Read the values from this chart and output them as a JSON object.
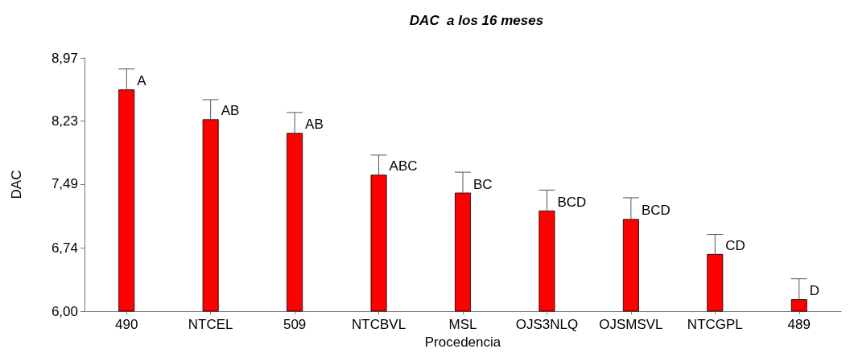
{
  "chart_data": {
    "type": "bar",
    "title": "DAC  a los 16 meses",
    "xlabel": "Procedencia",
    "ylabel": "DAC",
    "categories": [
      "490",
      "NTCEL",
      "509",
      "NTCBVL",
      "MSL",
      "OJS3NLQ",
      "OJSMSVL",
      "NTCGPL",
      "489"
    ],
    "values": [
      8.6,
      8.25,
      8.09,
      7.6,
      7.39,
      7.18,
      7.08,
      6.67,
      6.14
    ],
    "errors": [
      [
        8.6,
        8.84
      ],
      [
        8.25,
        8.48
      ],
      [
        8.09,
        8.33
      ],
      [
        7.6,
        7.83
      ],
      [
        7.39,
        7.63
      ],
      [
        7.18,
        7.42
      ],
      [
        7.08,
        7.33
      ],
      [
        6.67,
        6.9
      ],
      [
        6.14,
        6.38
      ]
    ],
    "color": "#ff0000",
    "ylim": [
      6.0,
      8.97
    ],
    "yticks": [
      {
        "value": 6.0,
        "label": "6,00"
      },
      {
        "value": 6.74,
        "label": "6,74"
      },
      {
        "value": 7.49,
        "label": "7,49"
      },
      {
        "value": 8.23,
        "label": "8,23"
      },
      {
        "value": 8.97,
        "label": "8,97"
      }
    ],
    "grid": false,
    "annotations": [
      {
        "text": "A",
        "x": "490",
        "y": 8.6
      },
      {
        "text": "AB",
        "x": "NTCEL",
        "y": 8.25
      },
      {
        "text": "AB",
        "x": "509",
        "y": 8.09
      },
      {
        "text": "ABC",
        "x": "NTCBVL",
        "y": 7.6
      },
      {
        "text": "BC",
        "x": "MSL",
        "y": 7.39
      },
      {
        "text": "BCD",
        "x": "OJS3NLQ",
        "y": 7.18
      },
      {
        "text": "BCD",
        "x": "OJSMSVL",
        "y": 7.08
      },
      {
        "text": "CD",
        "x": "NTCGPL",
        "y": 6.67
      },
      {
        "text": "D",
        "x": "489",
        "y": 6.14
      }
    ]
  }
}
